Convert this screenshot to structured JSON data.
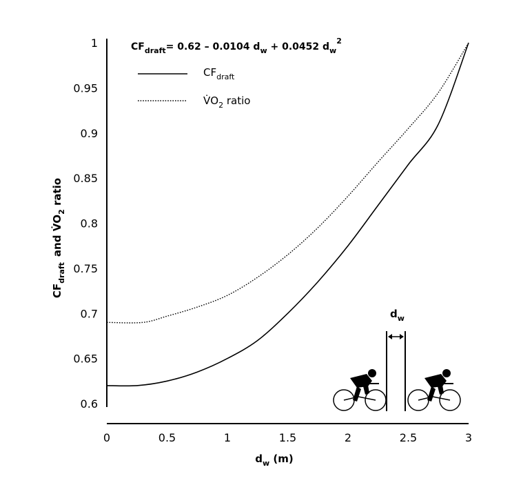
{
  "chart_data": {
    "type": "line",
    "title": "",
    "annotation": {
      "lhs_main": "CF",
      "lhs_sub": "draft",
      "rhs_part1": "= 0.62 – 0.0104 d",
      "rhs_sub1": "w",
      "rhs_part2": " + 0.0452 d",
      "rhs_sub2": "w",
      "rhs_sup": "2"
    },
    "xlabel": {
      "main": "d",
      "sub": "w",
      "unit": " (m)"
    },
    "ylabel": {
      "part1_main": "CF",
      "part1_sub": "draft",
      "and": "and ",
      "part2_main": "V̇O",
      "part2_sub": "2",
      "part2_rest": " ratio"
    },
    "xlim": [
      0,
      3
    ],
    "ylim": [
      0.6,
      1.0
    ],
    "x_ticks": [
      "0",
      "0.5",
      "1",
      "1.5",
      "2",
      "2.5",
      "3"
    ],
    "y_ticks": [
      "0.6",
      "0.65",
      "0.7",
      "0.75",
      "0.8",
      "0.85",
      "0.9",
      "0.95",
      "1"
    ],
    "grid": false,
    "legend_position": "top-left",
    "series": [
      {
        "key": "cf_draft",
        "label_main": "CF",
        "label_sub": "draft",
        "style": "solid",
        "x": [
          0,
          0.25,
          0.5,
          0.75,
          1.0,
          1.25,
          1.5,
          1.75,
          2.0,
          2.25,
          2.5,
          2.75,
          3.0
        ],
        "y": [
          0.62,
          0.62,
          0.625,
          0.635,
          0.65,
          0.67,
          0.7,
          0.735,
          0.775,
          0.82,
          0.865,
          0.91,
          1.0
        ]
      },
      {
        "key": "vo2_ratio",
        "label_main": "V̇O",
        "label_sub": "2",
        "label_rest": " ratio",
        "style": "dotted",
        "x": [
          0,
          0.3,
          0.5,
          0.75,
          1.0,
          1.25,
          1.5,
          1.75,
          2.0,
          2.25,
          2.5,
          2.75,
          3.0
        ],
        "y": [
          0.69,
          0.69,
          0.697,
          0.707,
          0.72,
          0.74,
          0.765,
          0.795,
          0.83,
          0.868,
          0.905,
          0.945,
          1.0
        ]
      }
    ],
    "inset": {
      "label_main": "d",
      "label_sub": "w"
    }
  }
}
